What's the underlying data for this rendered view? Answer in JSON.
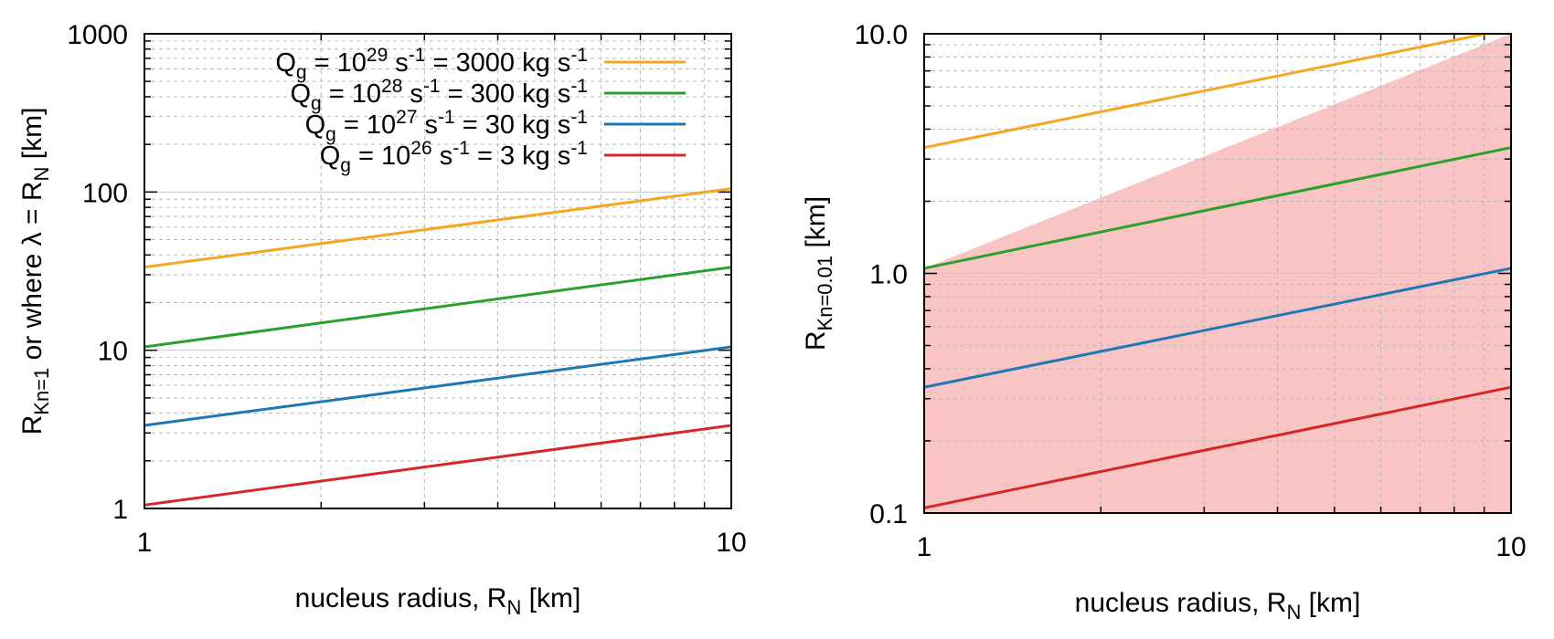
{
  "chart_data": [
    {
      "type": "line",
      "x_scale": "log",
      "y_scale": "log",
      "xlim": [
        1,
        10
      ],
      "ylim": [
        1,
        1000
      ],
      "grid": true,
      "legend_position": "top-right",
      "x_ticks": [
        "1",
        "10"
      ],
      "y_ticks": [
        "1",
        "10",
        "100",
        "1000"
      ],
      "xlabel": {
        "main": "nucleus radius, R",
        "sub": "N",
        "suffix": " [km]"
      },
      "ylabel": {
        "main": "R",
        "sub": "Kn=1",
        "middle": " or where λ = R",
        "sub2": "N",
        "suffix": " [km]"
      },
      "series": [
        {
          "name": "Q_g = 10^29 s^-1 = 3000 kg s^-1",
          "color": "#f5a623",
          "x": [
            1,
            10
          ],
          "y": [
            33.5,
            105
          ],
          "legend": {
            "q": "Q",
            "q_sub": "g",
            "pre": " = 10",
            "exp": "29",
            "mid": " s",
            "exp2": "-1",
            "post": " = 3000 kg s",
            "exp3": "-1"
          }
        },
        {
          "name": "Q_g = 10^28 s^-1 = 300 kg s^-1",
          "color": "#2ca02c",
          "x": [
            1,
            10
          ],
          "y": [
            10.5,
            33.5
          ],
          "legend": {
            "q": "Q",
            "q_sub": "g",
            "pre": " = 10",
            "exp": "28",
            "mid": " s",
            "exp2": "-1",
            "post": " = 300 kg s",
            "exp3": "-1"
          }
        },
        {
          "name": "Q_g = 10^27 s^-1 = 30 kg s^-1",
          "color": "#1f77b4",
          "x": [
            1,
            10
          ],
          "y": [
            3.35,
            10.5
          ],
          "legend": {
            "q": "Q",
            "q_sub": "g",
            "pre": " = 10",
            "exp": "27",
            "mid": " s",
            "exp2": "-1",
            "post": " = 30 kg s",
            "exp3": "-1"
          }
        },
        {
          "name": "Q_g = 10^26 s^-1 = 3 kg s^-1",
          "color": "#d62728",
          "x": [
            1,
            10
          ],
          "y": [
            1.05,
            3.35
          ],
          "legend": {
            "q": "Q",
            "q_sub": "g",
            "pre": " = 10",
            "exp": "26",
            "mid": " s",
            "exp2": "-1",
            "post": " = 3 kg s",
            "exp3": "-1"
          }
        }
      ]
    },
    {
      "type": "line",
      "x_scale": "log",
      "y_scale": "log",
      "xlim": [
        1,
        10
      ],
      "ylim": [
        0.1,
        10
      ],
      "grid": true,
      "x_ticks": [
        "1",
        "10"
      ],
      "y_ticks": [
        "0.1",
        "1.0",
        "10.0"
      ],
      "xlabel": {
        "main": "nucleus radius, R",
        "sub": "N",
        "suffix": " [km]"
      },
      "ylabel": {
        "main": "R",
        "sub": "Kn=0.01",
        "suffix": " [km]"
      },
      "shaded_region": {
        "color": "#f8c4c4",
        "boundary": [
          [
            1,
            1.05
          ],
          [
            10,
            10
          ]
        ],
        "fill_below": true
      },
      "series": [
        {
          "color": "#f5a623",
          "x": [
            1,
            10
          ],
          "y": [
            3.35,
            10.5
          ]
        },
        {
          "color": "#2ca02c",
          "x": [
            1,
            10
          ],
          "y": [
            1.05,
            3.35
          ]
        },
        {
          "color": "#1f77b4",
          "x": [
            1,
            10
          ],
          "y": [
            0.335,
            1.05
          ]
        },
        {
          "color": "#d62728",
          "x": [
            1,
            10
          ],
          "y": [
            0.105,
            0.335
          ]
        }
      ]
    }
  ]
}
